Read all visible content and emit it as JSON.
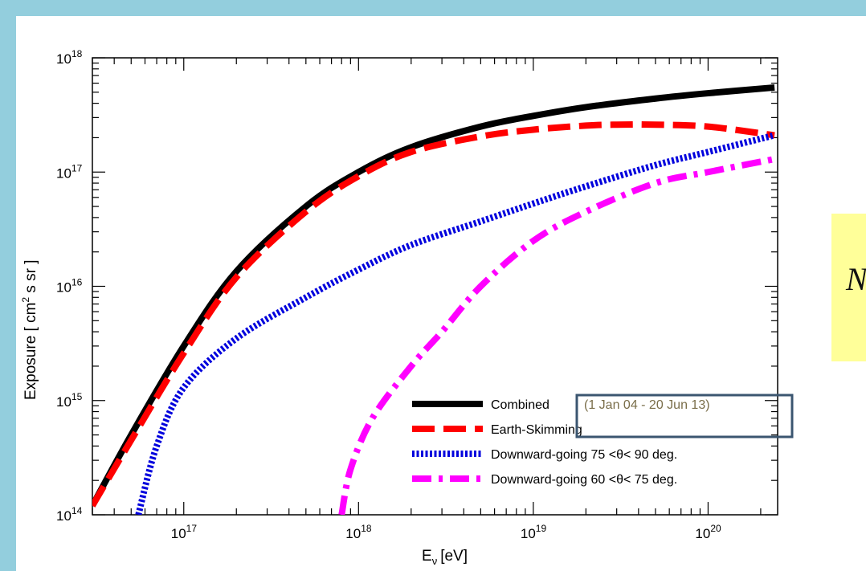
{
  "chart_data": {
    "type": "line",
    "xlabel": "E",
    "xlabel_sub": "ν",
    "xlabel_unit": "[eV]",
    "ylabel": "Exposure  [ cm",
    "ylabel_sup": "2",
    "ylabel_unit": " s sr ]",
    "x_scale": "log",
    "y_scale": "log",
    "xlim": [
      3e+16,
      2.5e+20
    ],
    "ylim": [
      100000000000000.0,
      1e+18
    ],
    "x_ticks": [
      {
        "value": 1e+17,
        "base": "10",
        "exp": "17"
      },
      {
        "value": 1e+18,
        "base": "10",
        "exp": "18"
      },
      {
        "value": 1e+19,
        "base": "10",
        "exp": "19"
      },
      {
        "value": 1e+20,
        "base": "10",
        "exp": "20"
      }
    ],
    "y_ticks": [
      {
        "value": 100000000000000.0,
        "base": "10",
        "exp": "14"
      },
      {
        "value": 1000000000000000.0,
        "base": "10",
        "exp": "15"
      },
      {
        "value": 1e+16,
        "base": "10",
        "exp": "16"
      },
      {
        "value": 1e+17,
        "base": "10",
        "exp": "17"
      },
      {
        "value": 1e+18,
        "base": "10",
        "exp": "18"
      }
    ],
    "grid": false,
    "legend_position": "bottom-right",
    "series": [
      {
        "name": "Combined",
        "color": "#000000",
        "style": "solid",
        "x": [
          3e+16,
          5e+16,
          1e+17,
          2e+17,
          5e+17,
          1e+18,
          2e+18,
          5e+18,
          1e+19,
          2e+19,
          5e+19,
          1e+20,
          2.4e+20
        ],
        "y": [
          120000000000000.0,
          500000000000000.0,
          3000000000000000.0,
          1.35e+16,
          5e+16,
          1e+17,
          1.65e+17,
          2.5e+17,
          3.1e+17,
          3.7e+17,
          4.4e+17,
          4.9e+17,
          5.5e+17
        ]
      },
      {
        "name": "Earth-Skimming",
        "color": "#ff0000",
        "style": "dashed",
        "x": [
          3e+16,
          5e+16,
          1e+17,
          2e+17,
          5e+17,
          1e+18,
          2e+18,
          5e+18,
          1e+19,
          2e+19,
          3e+19,
          5e+19,
          1e+20,
          2.4e+20
        ],
        "y": [
          120000000000000.0,
          450000000000000.0,
          2600000000000000.0,
          1.2e+16,
          4.5e+16,
          9.2e+16,
          1.5e+17,
          2.05e+17,
          2.35e+17,
          2.55e+17,
          2.6e+17,
          2.6e+17,
          2.5e+17,
          2.1e+17
        ]
      },
      {
        "name": "Downward-going 75 <θ< 90 deg.",
        "color": "#0000dd",
        "style": "dotted",
        "x": [
          5.5e+16,
          7e+16,
          1e+17,
          2e+17,
          5e+17,
          1e+18,
          2e+18,
          5e+18,
          1e+19,
          2e+19,
          5e+19,
          1e+20,
          2.4e+20
        ],
        "y": [
          100000000000000.0,
          400000000000000.0,
          1300000000000000.0,
          3500000000000000.0,
          8000000000000000.0,
          1.4e+16,
          2.3e+16,
          3.7e+16,
          5.3e+16,
          7.5e+16,
          1.15e+17,
          1.5e+17,
          2.1e+17
        ]
      },
      {
        "name": "Downward-going 60 <θ< 75 deg.",
        "color": "#ff00ff",
        "style": "dashdot",
        "x": [
          8e+17,
          9e+17,
          1.2e+18,
          2e+18,
          3e+18,
          5e+18,
          1e+19,
          2e+19,
          5e+19,
          1e+20,
          2.4e+20
        ],
        "y": [
          100000000000000.0,
          250000000000000.0,
          700000000000000.0,
          2000000000000000.0,
          4000000000000000.0,
          1e+16,
          2.5e+16,
          4.5e+16,
          8e+16,
          1e+17,
          1.3e+17
        ]
      }
    ],
    "annotation": "(1 Jan 04 - 20 Jun 13)"
  },
  "callout": {
    "text": "N"
  }
}
